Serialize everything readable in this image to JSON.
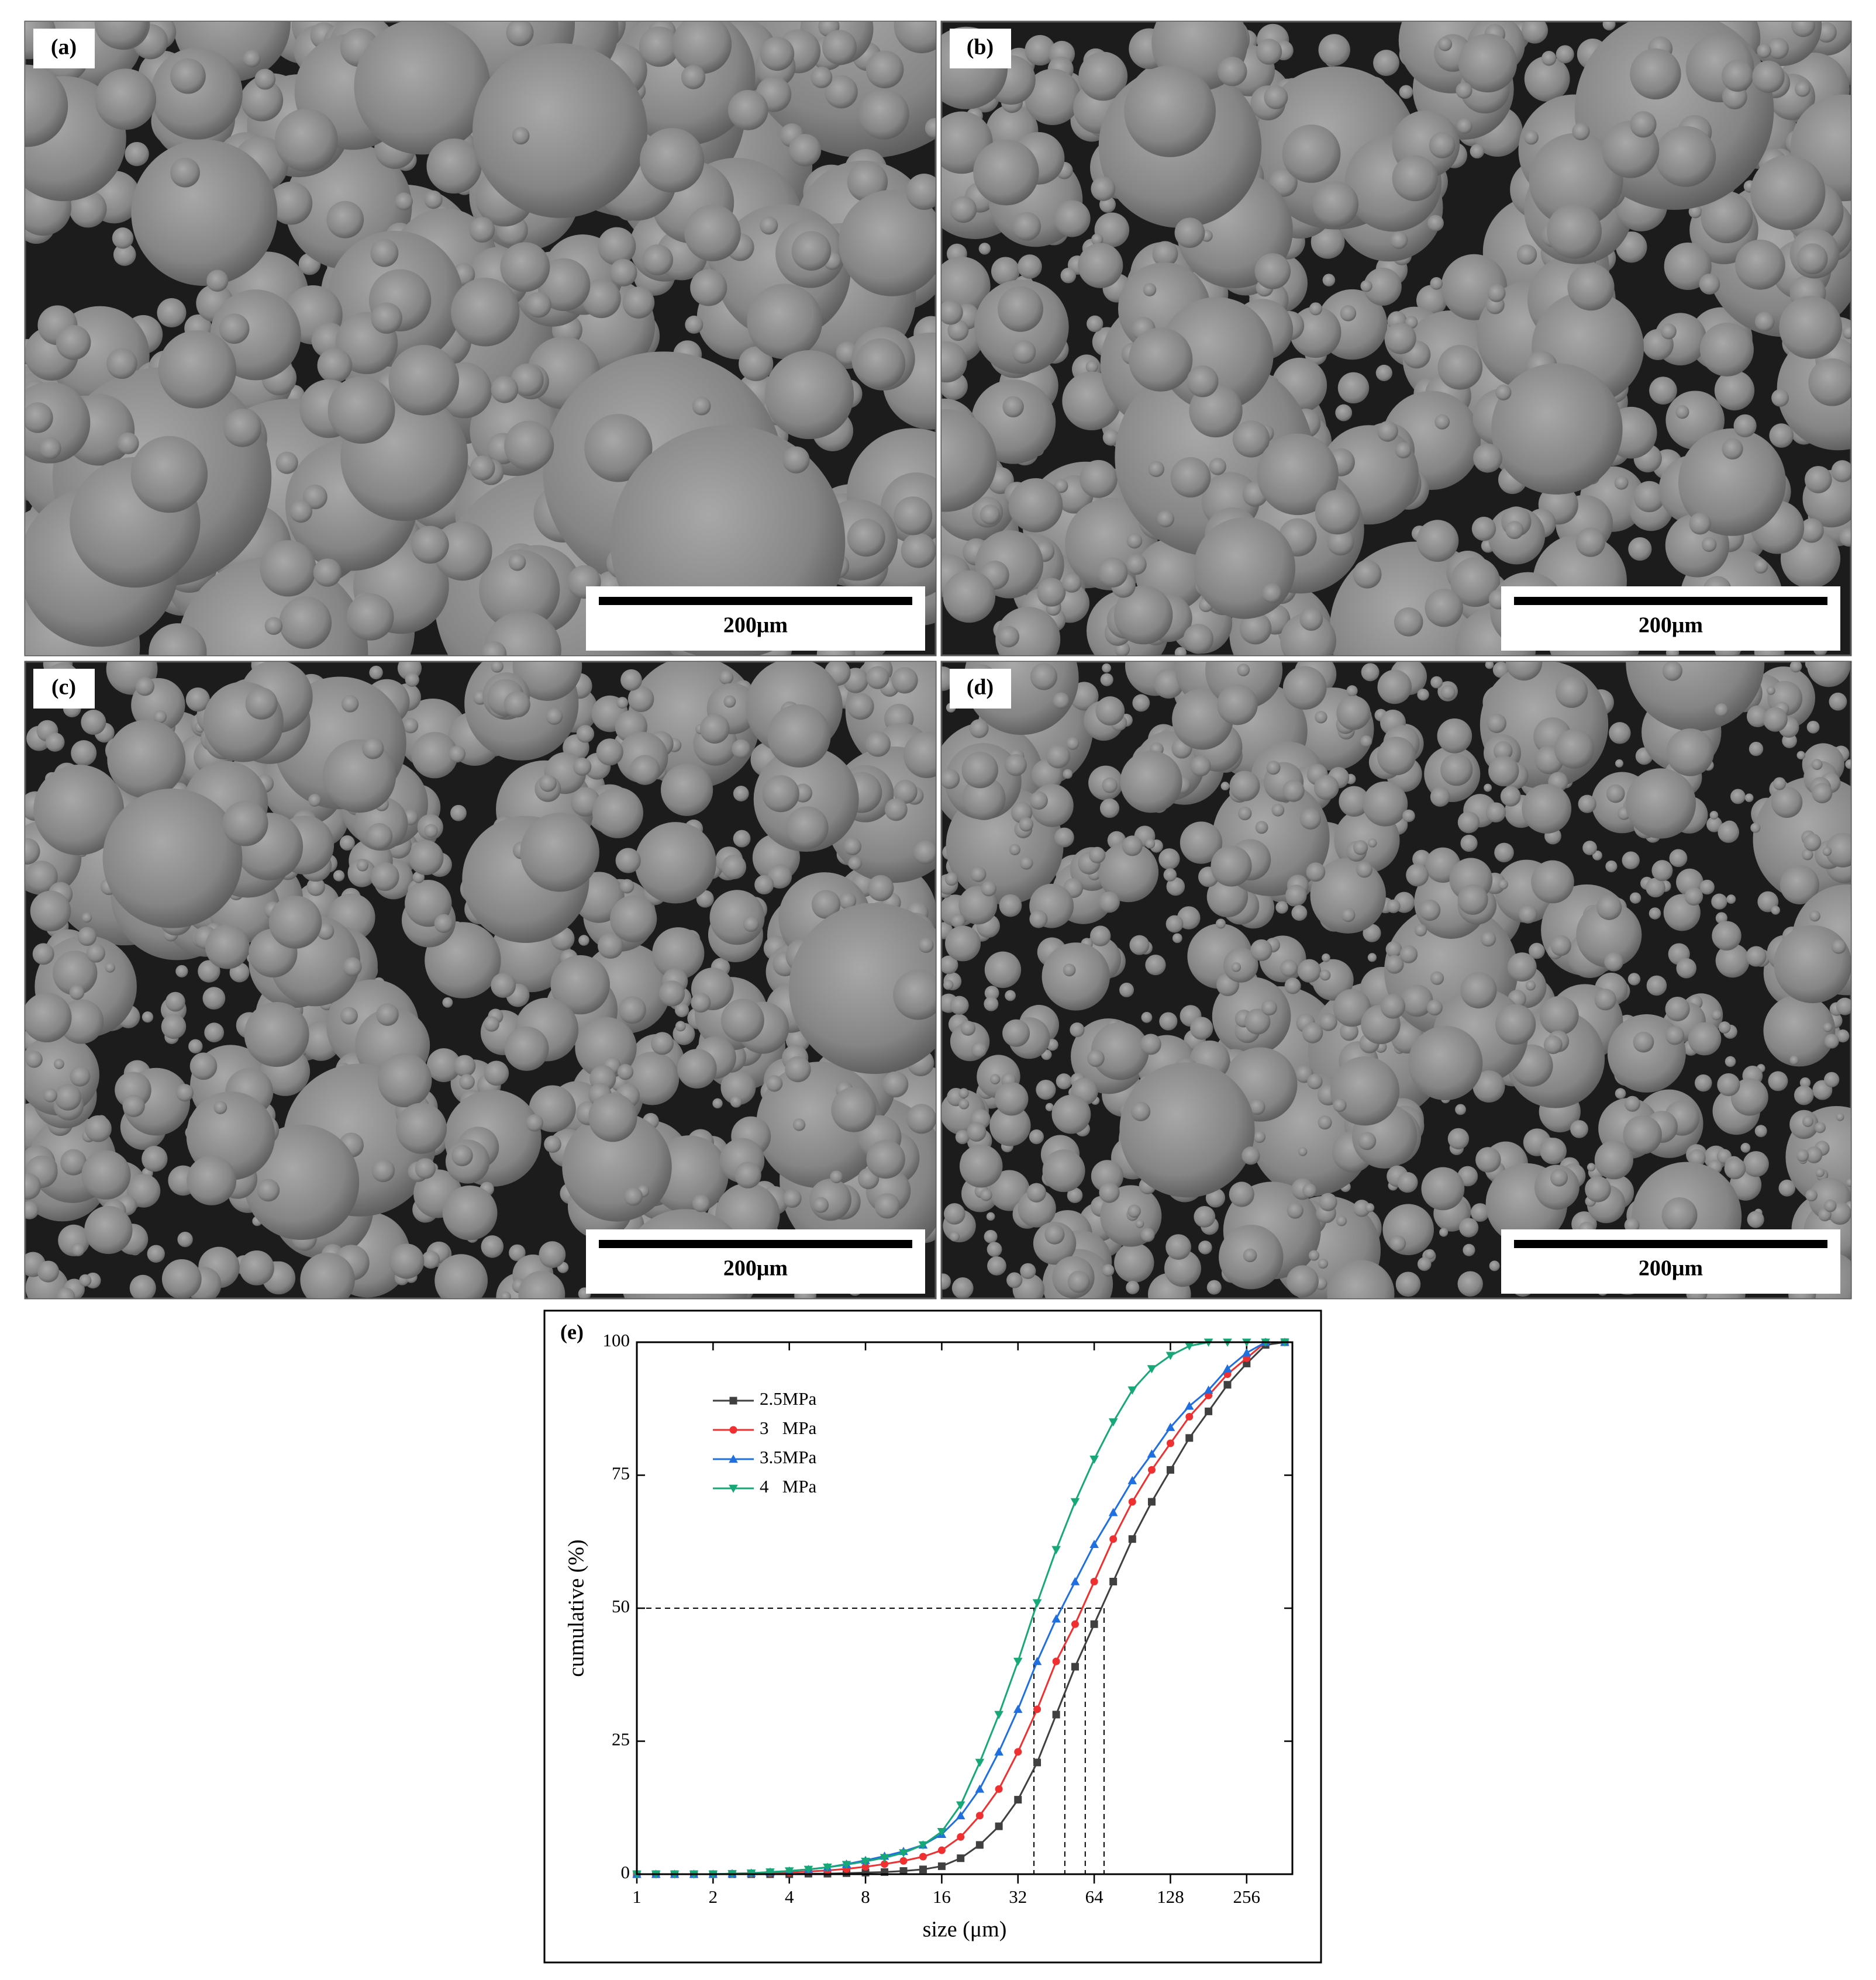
{
  "images": [
    {
      "label": "(a)",
      "scale_bar": "200μm"
    },
    {
      "label": "(b)",
      "scale_bar": "200μm"
    },
    {
      "label": "(c)",
      "scale_bar": "200μm"
    },
    {
      "label": "(d)",
      "scale_bar": "200μm"
    }
  ],
  "chart_data": {
    "type": "line",
    "panel_label": "(e)",
    "x_label": "size (μm)",
    "y_label": "cumulative (%)",
    "log_base": 2,
    "xlim": [
      1,
      388
    ],
    "ylim": [
      0,
      100
    ],
    "xticks": [
      1,
      2,
      4,
      8,
      16,
      32,
      64,
      128,
      256
    ],
    "yticks": [
      0,
      25,
      50,
      75,
      100
    ],
    "legend": "upper left",
    "x": [
      1,
      1.19,
      1.41,
      1.68,
      2,
      2.38,
      2.83,
      3.36,
      4,
      4.76,
      5.66,
      6.73,
      8,
      9.51,
      11.3,
      13.5,
      16,
      19,
      22.6,
      26.9,
      32,
      38.1,
      45.3,
      53.8,
      64,
      76.1,
      90.5,
      108,
      128,
      152,
      181,
      215,
      256,
      304,
      362
    ],
    "series": [
      {
        "name": "2.5MPa",
        "color": "#404040",
        "marker": "square",
        "values": [
          0,
          0,
          0,
          0,
          0,
          0,
          0,
          0,
          0,
          0.1,
          0.1,
          0.2,
          0.3,
          0.4,
          0.6,
          0.9,
          1.5,
          3,
          5.5,
          9,
          14,
          21,
          30,
          39,
          47,
          55,
          63,
          70,
          76,
          82,
          87,
          92,
          96,
          99.5,
          100
        ]
      },
      {
        "name": "3   MPa",
        "color": "#f03030",
        "marker": "circle",
        "values": [
          0,
          0,
          0,
          0,
          0,
          0,
          0.1,
          0.2,
          0.3,
          0.5,
          0.7,
          1,
          1.4,
          1.9,
          2.5,
          3.3,
          4.5,
          7,
          11,
          16,
          23,
          31,
          40,
          47,
          55,
          63,
          70,
          76,
          81,
          86,
          90,
          94,
          97,
          100,
          100
        ]
      },
      {
        "name": "3.5MPa",
        "color": "#1f6fe0",
        "marker": "triangle-up",
        "values": [
          0,
          0,
          0,
          0,
          0,
          0.1,
          0.2,
          0.4,
          0.6,
          0.9,
          1.3,
          1.9,
          2.6,
          3.4,
          4.3,
          5.5,
          7.5,
          11,
          16,
          23,
          31,
          40,
          48,
          55,
          62,
          68,
          74,
          79,
          84,
          88,
          91,
          95,
          98,
          100,
          100
        ]
      },
      {
        "name": "4   MPa",
        "color": "#18a878",
        "marker": "triangle-down",
        "values": [
          0,
          0,
          0,
          0,
          0,
          0.1,
          0.2,
          0.4,
          0.6,
          0.9,
          1.3,
          1.8,
          2.4,
          3.1,
          4,
          5.5,
          8,
          13,
          21,
          30,
          40,
          51,
          61,
          70,
          78,
          85,
          91,
          95,
          97.5,
          99.3,
          100,
          100,
          100,
          100,
          100
        ]
      }
    ],
    "d50_lines": {
      "y": 50,
      "x": [
        37,
        49,
        59,
        70
      ]
    }
  }
}
